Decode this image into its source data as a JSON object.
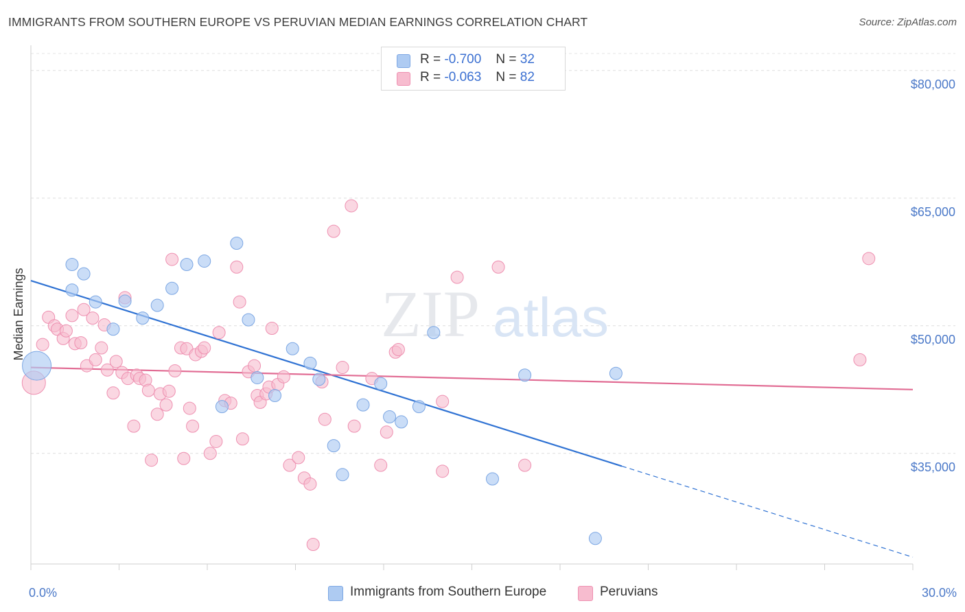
{
  "title": "IMMIGRANTS FROM SOUTHERN EUROPE VS PERUVIAN MEDIAN EARNINGS CORRELATION CHART",
  "source": "Source: ZipAtlas.com",
  "watermark": {
    "zip": "ZIP",
    "atlas": "atlas"
  },
  "legend": {
    "r_label": "R =",
    "n_label": "N =",
    "series1": {
      "r": "-0.700",
      "n": "32"
    },
    "series2": {
      "r": "-0.063",
      "n": "82"
    }
  },
  "chart_data": {
    "type": "scatter",
    "title": "IMMIGRANTS FROM SOUTHERN EUROPE VS PERUVIAN MEDIAN EARNINGS CORRELATION CHART",
    "xlabel": "",
    "ylabel": "Median Earnings",
    "xlim": [
      0,
      30
    ],
    "ylim": [
      22000,
      82000
    ],
    "x_tick_labels": [
      "0.0%",
      "30.0%"
    ],
    "y_ticks": [
      35000,
      50000,
      65000,
      80000
    ],
    "y_tick_labels": [
      "$35,000",
      "$50,000",
      "$65,000",
      "$80,000"
    ],
    "colors": {
      "blue_fill": "#aecbf2",
      "blue_stroke": "#7ba6e3",
      "blue_line": "#2f72d3",
      "pink_fill": "#f7bccf",
      "pink_stroke": "#ee8fb0",
      "pink_line": "#e16b93",
      "tick_text": "#4a78c8"
    },
    "series": [
      {
        "name": "Immigrants from Southern Europe",
        "color": "#aecbf2",
        "trend": {
          "x": [
            0,
            20.1
          ],
          "y": [
            55300,
            33500
          ],
          "dashed_to": [
            30,
            22800
          ]
        },
        "points": [
          {
            "x": 0.2,
            "y": 45300,
            "big": true
          },
          {
            "x": 1.4,
            "y": 57200
          },
          {
            "x": 1.8,
            "y": 56100
          },
          {
            "x": 1.4,
            "y": 54200
          },
          {
            "x": 2.2,
            "y": 52800
          },
          {
            "x": 2.8,
            "y": 49600
          },
          {
            "x": 3.2,
            "y": 52900
          },
          {
            "x": 3.8,
            "y": 50900
          },
          {
            "x": 4.3,
            "y": 52400
          },
          {
            "x": 4.8,
            "y": 54400
          },
          {
            "x": 5.3,
            "y": 57200
          },
          {
            "x": 5.9,
            "y": 57600
          },
          {
            "x": 6.5,
            "y": 40500
          },
          {
            "x": 7.0,
            "y": 59700
          },
          {
            "x": 7.4,
            "y": 50700
          },
          {
            "x": 7.7,
            "y": 43900
          },
          {
            "x": 8.3,
            "y": 41800
          },
          {
            "x": 8.9,
            "y": 47300
          },
          {
            "x": 9.5,
            "y": 45600
          },
          {
            "x": 9.8,
            "y": 43700
          },
          {
            "x": 10.3,
            "y": 35900
          },
          {
            "x": 10.6,
            "y": 32500
          },
          {
            "x": 11.3,
            "y": 40700
          },
          {
            "x": 11.9,
            "y": 43200
          },
          {
            "x": 12.2,
            "y": 39300
          },
          {
            "x": 12.6,
            "y": 38700
          },
          {
            "x": 13.2,
            "y": 40500
          },
          {
            "x": 13.7,
            "y": 49200
          },
          {
            "x": 15.7,
            "y": 32000
          },
          {
            "x": 16.8,
            "y": 44200
          },
          {
            "x": 19.2,
            "y": 25000
          },
          {
            "x": 19.9,
            "y": 44400
          }
        ]
      },
      {
        "name": "Peruvians",
        "color": "#f7bccf",
        "trend": {
          "x": [
            0,
            30
          ],
          "y": [
            45100,
            42500
          ]
        },
        "points": [
          {
            "x": 0.1,
            "y": 43300,
            "big": true
          },
          {
            "x": 0.4,
            "y": 47800
          },
          {
            "x": 0.6,
            "y": 51000
          },
          {
            "x": 0.8,
            "y": 50000
          },
          {
            "x": 0.9,
            "y": 49600
          },
          {
            "x": 1.1,
            "y": 48500
          },
          {
            "x": 1.2,
            "y": 49400
          },
          {
            "x": 1.4,
            "y": 51200
          },
          {
            "x": 1.5,
            "y": 47900
          },
          {
            "x": 1.7,
            "y": 48000
          },
          {
            "x": 1.8,
            "y": 51900
          },
          {
            "x": 1.9,
            "y": 45300
          },
          {
            "x": 2.1,
            "y": 50900
          },
          {
            "x": 2.2,
            "y": 46000
          },
          {
            "x": 2.4,
            "y": 47400
          },
          {
            "x": 2.5,
            "y": 50100
          },
          {
            "x": 2.6,
            "y": 44800
          },
          {
            "x": 2.8,
            "y": 42100
          },
          {
            "x": 2.9,
            "y": 45800
          },
          {
            "x": 3.1,
            "y": 44500
          },
          {
            "x": 3.2,
            "y": 53300
          },
          {
            "x": 3.3,
            "y": 43800
          },
          {
            "x": 3.5,
            "y": 38200
          },
          {
            "x": 3.6,
            "y": 44200
          },
          {
            "x": 3.7,
            "y": 43800
          },
          {
            "x": 3.9,
            "y": 43600
          },
          {
            "x": 4.0,
            "y": 42400
          },
          {
            "x": 4.1,
            "y": 34200
          },
          {
            "x": 4.3,
            "y": 39600
          },
          {
            "x": 4.4,
            "y": 42000
          },
          {
            "x": 4.6,
            "y": 40700
          },
          {
            "x": 4.7,
            "y": 42300
          },
          {
            "x": 4.8,
            "y": 57800
          },
          {
            "x": 4.9,
            "y": 44700
          },
          {
            "x": 5.1,
            "y": 47400
          },
          {
            "x": 5.3,
            "y": 47300
          },
          {
            "x": 5.2,
            "y": 34400
          },
          {
            "x": 5.4,
            "y": 40300
          },
          {
            "x": 5.6,
            "y": 46600
          },
          {
            "x": 5.8,
            "y": 47000
          },
          {
            "x": 5.9,
            "y": 47400
          },
          {
            "x": 6.1,
            "y": 35000
          },
          {
            "x": 6.3,
            "y": 36400
          },
          {
            "x": 6.4,
            "y": 49200
          },
          {
            "x": 6.6,
            "y": 41200
          },
          {
            "x": 6.8,
            "y": 40900
          },
          {
            "x": 7.0,
            "y": 56900
          },
          {
            "x": 7.1,
            "y": 52800
          },
          {
            "x": 7.2,
            "y": 36700
          },
          {
            "x": 7.4,
            "y": 44600
          },
          {
            "x": 7.6,
            "y": 45300
          },
          {
            "x": 7.7,
            "y": 41800
          },
          {
            "x": 7.8,
            "y": 41000
          },
          {
            "x": 8.0,
            "y": 42000
          },
          {
            "x": 8.1,
            "y": 42800
          },
          {
            "x": 8.2,
            "y": 49700
          },
          {
            "x": 8.4,
            "y": 43100
          },
          {
            "x": 8.6,
            "y": 44000
          },
          {
            "x": 8.8,
            "y": 33600
          },
          {
            "x": 9.1,
            "y": 34500
          },
          {
            "x": 9.3,
            "y": 32100
          },
          {
            "x": 9.5,
            "y": 31400
          },
          {
            "x": 9.6,
            "y": 24300
          },
          {
            "x": 9.9,
            "y": 43400
          },
          {
            "x": 10.0,
            "y": 39000
          },
          {
            "x": 10.3,
            "y": 61100
          },
          {
            "x": 10.6,
            "y": 45100
          },
          {
            "x": 10.9,
            "y": 64100
          },
          {
            "x": 11.0,
            "y": 38200
          },
          {
            "x": 11.6,
            "y": 43800
          },
          {
            "x": 11.9,
            "y": 33600
          },
          {
            "x": 12.1,
            "y": 37500
          },
          {
            "x": 12.4,
            "y": 46900
          },
          {
            "x": 12.5,
            "y": 47200
          },
          {
            "x": 14.0,
            "y": 41100
          },
          {
            "x": 14.0,
            "y": 32900
          },
          {
            "x": 14.5,
            "y": 55700
          },
          {
            "x": 15.9,
            "y": 56900
          },
          {
            "x": 16.8,
            "y": 33600
          },
          {
            "x": 28.2,
            "y": 46000
          },
          {
            "x": 28.5,
            "y": 57900
          },
          {
            "x": 5.5,
            "y": 38200
          }
        ]
      }
    ],
    "legend_items": [
      "Immigrants from Southern Europe",
      "Peruvians"
    ]
  }
}
